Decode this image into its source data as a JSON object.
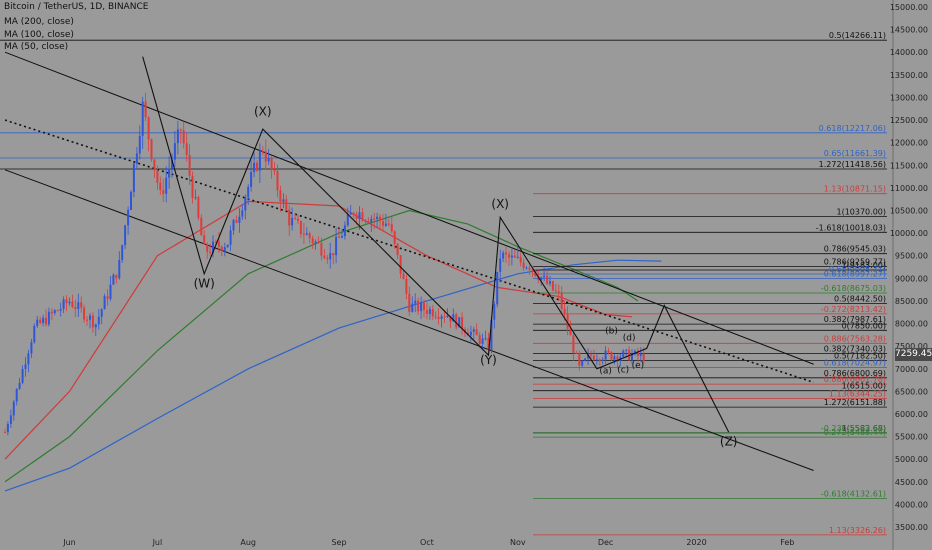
{
  "header": {
    "symbol_line": "Bitcoin / TetherUS, 1D, BINANCE",
    "indicators": [
      "MA (200, close)",
      "MA (100, close)",
      "MA (50, close)"
    ]
  },
  "current_price": "7259.45",
  "colors": {
    "background": "#9a9a9a",
    "candle_up": "#2f56d8",
    "candle_down": "#e03b3b",
    "ma200": "#2e63c9",
    "ma100": "#2f7d2f",
    "ma50": "#d03a3a",
    "fib_black": "#111111",
    "fib_red": "#d03a3a",
    "fib_blue": "#2e63c9",
    "fib_green": "#2f7d2f"
  },
  "chart_data": {
    "type": "candlestick",
    "title": "Bitcoin / TetherUS, 1D, BINANCE",
    "x_tick_labels": [
      "Jun",
      "Jul",
      "Aug",
      "Sep",
      "Oct",
      "Nov",
      "Dec",
      "2020",
      "Feb"
    ],
    "y_ticks": [
      3500,
      4000,
      4500,
      5000,
      5500,
      6000,
      6500,
      7000,
      7500,
      8000,
      8500,
      9000,
      9500,
      10000,
      10500,
      11000,
      11500,
      12000,
      12500,
      13000,
      13500,
      14000,
      14500,
      15000
    ],
    "ylim": [
      3300,
      15100
    ],
    "grid": false,
    "series": [
      {
        "name": "MA (200, close)",
        "points": [
          [
            "2019-05-10",
            4300
          ],
          [
            "2019-06-01",
            4800
          ],
          [
            "2019-07-01",
            5900
          ],
          [
            "2019-08-01",
            7000
          ],
          [
            "2019-09-01",
            7900
          ],
          [
            "2019-10-01",
            8500
          ],
          [
            "2019-11-01",
            9100
          ],
          [
            "2019-11-20",
            9300
          ],
          [
            "2019-12-05",
            9400
          ],
          [
            "2019-12-20",
            9380
          ]
        ]
      },
      {
        "name": "MA (100, close)",
        "points": [
          [
            "2019-05-10",
            4500
          ],
          [
            "2019-06-01",
            5500
          ],
          [
            "2019-07-01",
            7400
          ],
          [
            "2019-08-01",
            9100
          ],
          [
            "2019-09-01",
            10000
          ],
          [
            "2019-09-25",
            10500
          ],
          [
            "2019-10-15",
            10200
          ],
          [
            "2019-11-01",
            9700
          ],
          [
            "2019-11-20",
            9200
          ],
          [
            "2019-12-05",
            8800
          ],
          [
            "2019-12-12",
            8500
          ]
        ]
      },
      {
        "name": "MA (50, close)",
        "points": [
          [
            "2019-05-10",
            5000
          ],
          [
            "2019-06-01",
            6500
          ],
          [
            "2019-07-01",
            9500
          ],
          [
            "2019-08-01",
            10700
          ],
          [
            "2019-09-01",
            10600
          ],
          [
            "2019-10-01",
            9500
          ],
          [
            "2019-10-25",
            8800
          ],
          [
            "2019-11-15",
            8600
          ],
          [
            "2019-12-01",
            8200
          ],
          [
            "2019-12-10",
            8150
          ]
        ]
      }
    ],
    "price_path": [
      [
        "2019-05-10",
        5600
      ],
      [
        "2019-05-20",
        7900
      ],
      [
        "2019-06-01",
        8500
      ],
      [
        "2019-06-10",
        8000
      ],
      [
        "2019-06-18",
        9300
      ],
      [
        "2019-06-26",
        12800
      ],
      [
        "2019-07-02",
        10800
      ],
      [
        "2019-07-09",
        12300
      ],
      [
        "2019-07-17",
        9600
      ],
      [
        "2019-07-25",
        9800
      ],
      [
        "2019-08-06",
        11900
      ],
      [
        "2019-08-15",
        10300
      ],
      [
        "2019-08-29",
        9500
      ],
      [
        "2019-09-06",
        10500
      ],
      [
        "2019-09-18",
        10200
      ],
      [
        "2019-09-25",
        8400
      ],
      [
        "2019-10-08",
        8200
      ],
      [
        "2019-10-22",
        7500
      ],
      [
        "2019-10-26",
        9500
      ],
      [
        "2019-11-05",
        9300
      ],
      [
        "2019-11-15",
        8600
      ],
      [
        "2019-11-22",
        7000
      ],
      [
        "2019-11-26",
        7300
      ],
      [
        "2019-12-03",
        7300
      ],
      [
        "2019-12-10",
        7300
      ],
      [
        "2019-12-14",
        7260
      ]
    ],
    "fib_levels": [
      {
        "text": "0.5(14266.11)",
        "value": 14266.11,
        "color": "black"
      },
      {
        "text": "0.618(12217.06)",
        "value": 12217.06,
        "color": "blue"
      },
      {
        "text": "0.65(11661.39)",
        "value": 11661.39,
        "color": "blue"
      },
      {
        "text": "1.272(11418.56)",
        "value": 11418.56,
        "color": "black"
      },
      {
        "text": "1.13(10871.15)",
        "value": 10871.15,
        "color": "red"
      },
      {
        "text": "1(10370.00)",
        "value": 10370.0,
        "color": "black"
      },
      {
        "text": "-1.618(10018.03)",
        "value": 10018.03,
        "color": "black"
      },
      {
        "text": "0.786(9545.03)",
        "value": 9545.03,
        "color": "black"
      },
      {
        "text": "0.786(9259.77)",
        "value": 9259.77,
        "color": "black"
      },
      {
        "text": "1(9183.00)",
        "value": 9183.0,
        "color": "black"
      },
      {
        "text": "0.65(9095.71)",
        "value": 9095.71,
        "color": "blue"
      },
      {
        "text": "0.618(8997.27)",
        "value": 8997.27,
        "color": "blue"
      },
      {
        "text": "-0.618(8675.03)",
        "value": 8675.03,
        "color": "green"
      },
      {
        "text": "0.5(8442.50)",
        "value": 8442.5,
        "color": "black"
      },
      {
        "text": "-0.272(8213.42)",
        "value": 8213.42,
        "color": "red"
      },
      {
        "text": "0.382(7987.61)",
        "value": 7987.61,
        "color": "black"
      },
      {
        "text": "0(7850.00)",
        "value": 7850.0,
        "color": "black"
      },
      {
        "text": "0.886(7563.28)",
        "value": 7563.28,
        "color": "red"
      },
      {
        "text": "0.382(7340.03)",
        "value": 7340.03,
        "color": "black"
      },
      {
        "text": "0.5(7182.50)",
        "value": 7182.5,
        "color": "black"
      },
      {
        "text": "0.618(7024.97)",
        "value": 7024.97,
        "color": "blue"
      },
      {
        "text": "0.786(6800.69)",
        "value": 6800.69,
        "color": "black"
      },
      {
        "text": "0.886(6661.78)",
        "value": 6661.78,
        "color": "red"
      },
      {
        "text": "1(6515.00)",
        "value": 6515.0,
        "color": "black"
      },
      {
        "text": "1.13(6344.25)",
        "value": 6344.25,
        "color": "red"
      },
      {
        "text": "1.272(6151.88)",
        "value": 6151.88,
        "color": "black"
      },
      {
        "text": "1(5583.68)",
        "value": 5583.68,
        "color": "black"
      },
      {
        "text": "-0.236(5583.68)",
        "value": 5583.68,
        "color": "green"
      },
      {
        "text": "-0.272(5488.44)",
        "value": 5488.44,
        "color": "green"
      },
      {
        "text": "-0.618(4132.61)",
        "value": 4132.61,
        "color": "green"
      },
      {
        "text": "1.13(3326.26)",
        "value": 3326.26,
        "color": "red"
      }
    ],
    "wave_labels": [
      {
        "text": "(W)",
        "date": "2019-07-17",
        "value": 8800
      },
      {
        "text": "(X)",
        "date": "2019-08-06",
        "value": 12600
      },
      {
        "text": "(X)",
        "date": "2019-10-26",
        "value": 10550
      },
      {
        "text": "(Y)",
        "date": "2019-10-22",
        "value": 7100
      },
      {
        "text": "(Z)",
        "date": "2020-01-12",
        "value": 5300
      },
      {
        "text": "(a)",
        "date": "2019-12-01",
        "value": 6900
      },
      {
        "text": "(b)",
        "date": "2019-12-03",
        "value": 7780
      },
      {
        "text": "(c)",
        "date": "2019-12-07",
        "value": 6920
      },
      {
        "text": "(d)",
        "date": "2019-12-09",
        "value": 7620
      },
      {
        "text": "(e)",
        "date": "2019-12-12",
        "value": 7020
      }
    ],
    "zigzag": [
      [
        "2019-06-26",
        13900
      ],
      [
        "2019-07-17",
        9100
      ],
      [
        "2019-08-06",
        12300
      ],
      [
        "2019-10-22",
        7300
      ],
      [
        "2019-10-26",
        10350
      ],
      [
        "2019-11-28",
        7000
      ],
      [
        "2019-12-15",
        7450
      ],
      [
        "2019-12-21",
        8400
      ],
      [
        "2020-01-12",
        5600
      ]
    ],
    "channel_lines": [
      {
        "from": [
          "2019-05-10",
          14000
        ],
        "to": [
          "2020-02-10",
          7100
        ],
        "style": "solid"
      },
      {
        "from": [
          "2019-05-10",
          11400
        ],
        "to": [
          "2020-02-10",
          4750
        ],
        "style": "solid"
      },
      {
        "from": [
          "2019-05-10",
          12500
        ],
        "to": [
          "2020-02-10",
          6700
        ],
        "style": "dotted"
      }
    ]
  }
}
